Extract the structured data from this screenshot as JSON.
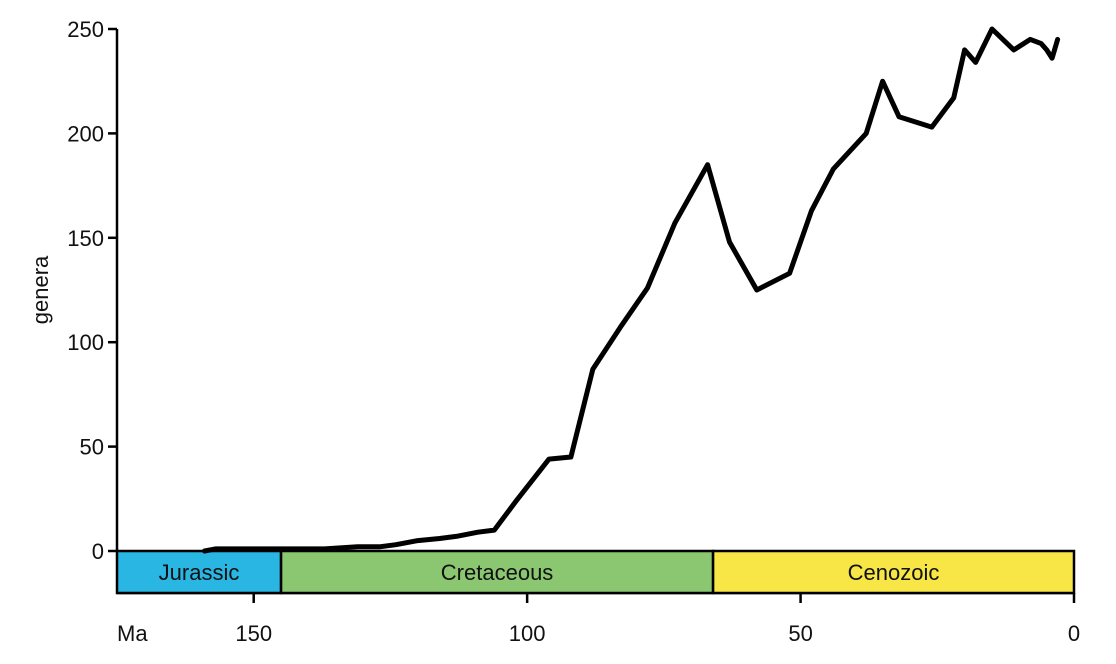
{
  "chart_data": {
    "type": "line",
    "title": "",
    "xlabel": "Ma",
    "ylabel": "genera",
    "xlim": [
      175,
      0
    ],
    "ylim": [
      0,
      250
    ],
    "x_ticks": [
      150,
      100,
      50,
      0
    ],
    "x_tick_labels": [
      "150",
      "100",
      "50",
      "0"
    ],
    "y_ticks": [
      0,
      50,
      100,
      150,
      200,
      250
    ],
    "y_tick_labels": [
      "0",
      "50",
      "100",
      "150",
      "200",
      "250"
    ],
    "grid": false,
    "series": [
      {
        "x": [
          159,
          157,
          152,
          146,
          140,
          137,
          131,
          127,
          124,
          120,
          116,
          113,
          109,
          106,
          102,
          96,
          92,
          88,
          83,
          78,
          73,
          67,
          63,
          58,
          52,
          48,
          44,
          38,
          35,
          32,
          26,
          22,
          20,
          18,
          15,
          11,
          8,
          6,
          5,
          4,
          3
        ],
        "y": [
          0,
          1,
          1,
          1,
          1,
          1,
          2,
          2,
          3,
          5,
          6,
          7,
          9,
          10,
          24,
          44,
          45,
          87,
          107,
          126,
          157,
          185,
          148,
          125,
          133,
          163,
          183,
          200,
          225,
          208,
          203,
          217,
          240,
          234,
          250,
          240,
          245,
          243,
          240,
          236,
          245
        ]
      }
    ],
    "periods": [
      {
        "name": "Jurassic",
        "start": 175,
        "end": 145,
        "color": "#29b6e3"
      },
      {
        "name": "Cretaceous",
        "start": 145,
        "end": 66,
        "color": "#8bc771"
      },
      {
        "name": "Cenozoic",
        "start": 66,
        "end": 0,
        "color": "#f7e645"
      }
    ]
  }
}
